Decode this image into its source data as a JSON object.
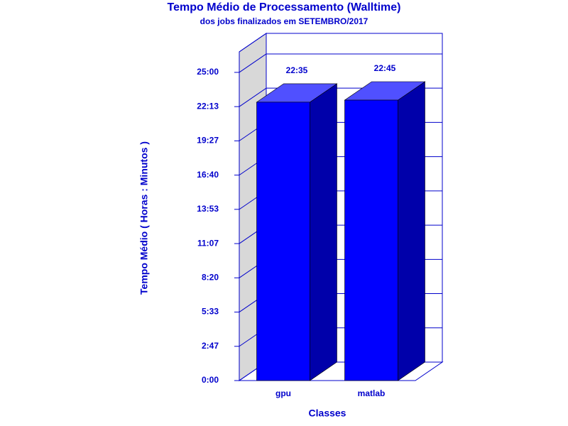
{
  "chart_data": {
    "type": "bar3d",
    "title": "Tempo Médio de Processamento (Walltime)",
    "subtitle": "dos jobs finalizados em SETEMBRO/2017",
    "y_label": "Tempo Médio ( Horas : Minutos )",
    "x_label": "Classes",
    "categories": [
      "gpu",
      "matlab"
    ],
    "values": [
      1355,
      1365
    ],
    "value_labels": [
      "22:35",
      "22:45"
    ],
    "ylim": [
      0,
      1600
    ],
    "yticks": [
      {
        "value": 0,
        "label": "0:00"
      },
      {
        "value": 166.667,
        "label": "2:47"
      },
      {
        "value": 333.333,
        "label": "5:33"
      },
      {
        "value": 500,
        "label": "8:20"
      },
      {
        "value": 666.667,
        "label": "11:07"
      },
      {
        "value": 833.333,
        "label": "13:53"
      },
      {
        "value": 1000,
        "label": "16:40"
      },
      {
        "value": 1166.667,
        "label": "19:27"
      },
      {
        "value": 1333.333,
        "label": "22:13"
      },
      {
        "value": 1500,
        "label": "25:00"
      }
    ],
    "color": "#0000ff",
    "grid": true
  }
}
